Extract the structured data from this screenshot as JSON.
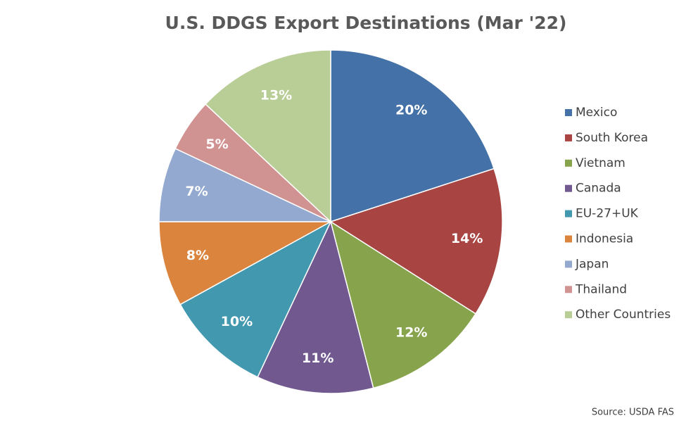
{
  "chart_data": {
    "type": "pie",
    "title": "U.S. DDGS Export Destinations (Mar '22)",
    "categories": [
      "Mexico",
      "South Korea",
      "Vietnam",
      "Canada",
      "EU-27+UK",
      "Indonesia",
      "Japan",
      "Thailand",
      "Other Countries"
    ],
    "values": [
      20,
      14,
      12,
      11,
      10,
      8,
      7,
      5,
      13
    ],
    "value_labels": [
      "20%",
      "14%",
      "12%",
      "11%",
      "10%",
      "8%",
      "7%",
      "5%",
      "13%"
    ],
    "colors": [
      "#4471a7",
      "#a84542",
      "#87a44d",
      "#71588f",
      "#4298af",
      "#db843d",
      "#93a9cf",
      "#d19392",
      "#b9cd96"
    ],
    "legend": "right",
    "source": "Source: USDA FAS"
  }
}
